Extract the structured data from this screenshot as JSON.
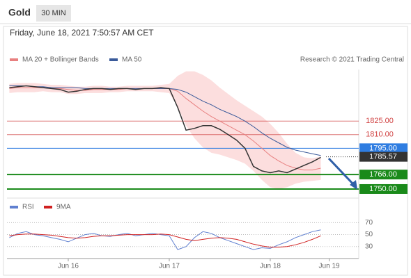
{
  "header": {
    "instrument": "Gold",
    "timeframe": "30 MIN",
    "timestamp": "Friday, June 18, 2021 7:50:57 AM CET"
  },
  "chart_data": {
    "type": "line",
    "source": "Research © 2021 Trading Central",
    "categories": [
      null,
      null,
      null,
      null,
      null,
      null,
      null,
      "Jun 16",
      null,
      null,
      null,
      null,
      null,
      null,
      null,
      null,
      null,
      null,
      null,
      "Jun 17",
      null,
      null,
      null,
      null,
      null,
      null,
      null,
      null,
      null,
      null,
      null,
      "Jun 18",
      null,
      null,
      null,
      null,
      null,
      null,
      "Jun 19"
    ],
    "price": {
      "color": "#333333",
      "values": [
        1862,
        1863,
        1864,
        1863,
        1862,
        1861,
        1860,
        1857,
        1858,
        1860,
        1861,
        1861,
        1860,
        1861,
        1861,
        1860,
        1861,
        1861,
        1862,
        1861,
        1840,
        1815,
        1817,
        1820,
        1820,
        1816,
        1810,
        1804,
        1795,
        1775,
        1770,
        1768,
        1770,
        1768,
        1772,
        1776,
        1780,
        1785,
        null
      ]
    },
    "series": [
      {
        "name": "MA 20 + Bollinger Bands",
        "color": "#e88080",
        "band_color": "#fbd0d0",
        "values": [
          1861,
          1862,
          1862,
          1862,
          1862,
          1861,
          1861,
          1860,
          1859,
          1859,
          1860,
          1860,
          1860,
          1860,
          1861,
          1861,
          1861,
          1861,
          1861,
          1861,
          1858,
          1850,
          1843,
          1836,
          1830,
          1825,
          1820,
          1815,
          1810,
          1803,
          1795,
          1787,
          1781,
          1776,
          1773,
          1771,
          1771,
          1773,
          null
        ],
        "upper": [
          1866,
          1867,
          1867,
          1867,
          1866,
          1865,
          1865,
          1864,
          1863,
          1863,
          1864,
          1864,
          1863,
          1863,
          1864,
          1864,
          1864,
          1864,
          1865,
          1866,
          1875,
          1880,
          1880,
          1876,
          1870,
          1862,
          1855,
          1848,
          1842,
          1836,
          1830,
          1822,
          1812,
          1800,
          1790,
          1785,
          1784,
          1786,
          null
        ],
        "lower": [
          1856,
          1857,
          1857,
          1857,
          1858,
          1857,
          1857,
          1855,
          1855,
          1856,
          1856,
          1856,
          1857,
          1857,
          1858,
          1858,
          1858,
          1858,
          1857,
          1856,
          1841,
          1820,
          1806,
          1796,
          1790,
          1788,
          1785,
          1782,
          1778,
          1770,
          1760,
          1752,
          1750,
          1752,
          1756,
          1758,
          1759,
          1760,
          null
        ]
      },
      {
        "name": "MA 50",
        "color": "#3a5a9a",
        "values": [
          1864,
          1864,
          1864,
          1863,
          1863,
          1862,
          1862,
          1862,
          1862,
          1861,
          1861,
          1861,
          1861,
          1861,
          1861,
          1861,
          1861,
          1861,
          1861,
          1861,
          1860,
          1857,
          1852,
          1847,
          1843,
          1838,
          1834,
          1830,
          1825,
          1819,
          1812,
          1806,
          1801,
          1796,
          1793,
          1791,
          1789,
          1787,
          null
        ]
      }
    ],
    "levels": [
      {
        "value": 1825,
        "label": "1825.00",
        "color": "#d04040",
        "style": "line"
      },
      {
        "value": 1810,
        "label": "1810.00",
        "color": "#d04040",
        "style": "line"
      },
      {
        "value": 1795,
        "label": "1795.00",
        "color": "#2f7de1",
        "style": "box"
      },
      {
        "value": 1785.57,
        "color": "#333333",
        "style": "current"
      },
      {
        "value": 1766,
        "label": "1766.00",
        "color": "#1a8a1a",
        "style": "box"
      },
      {
        "value": 1750,
        "label": "1750.00",
        "color": "#1a8a1a",
        "style": "box"
      }
    ],
    "ylim": [
      1740,
      1882
    ],
    "rsi": {
      "series": [
        {
          "name": "RSI",
          "color": "#6080d0",
          "values": [
            45,
            52,
            55,
            50,
            48,
            45,
            42,
            38,
            44,
            50,
            52,
            48,
            47,
            50,
            52,
            48,
            50,
            52,
            50,
            48,
            25,
            30,
            45,
            55,
            52,
            45,
            40,
            35,
            30,
            25,
            28,
            27,
            33,
            38,
            45,
            50,
            55,
            58,
            null
          ]
        },
        {
          "name": "9MA",
          "color": "#d02020",
          "values": [
            48,
            50,
            51,
            51,
            50,
            49,
            47,
            45,
            44,
            45,
            47,
            48,
            48,
            49,
            50,
            50,
            50,
            50,
            51,
            50,
            46,
            42,
            40,
            42,
            44,
            45,
            44,
            42,
            38,
            34,
            31,
            29,
            29,
            30,
            33,
            37,
            42,
            48,
            null
          ]
        }
      ],
      "ylim": [
        10,
        82
      ],
      "yticks": [
        70,
        50,
        30
      ]
    }
  }
}
